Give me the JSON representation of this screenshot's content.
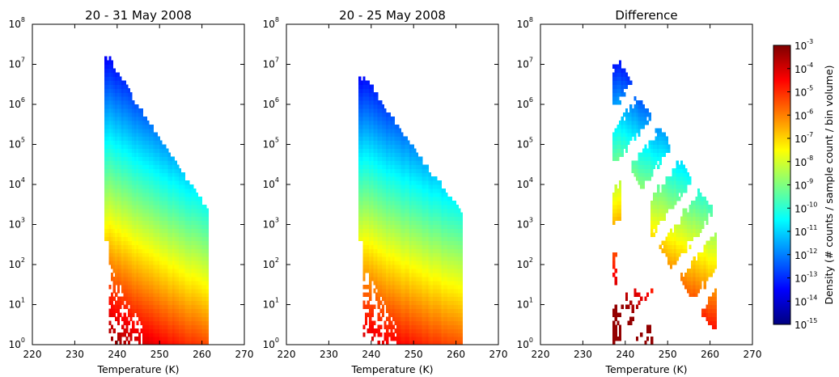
{
  "chart_data": [
    {
      "type": "heatmap",
      "title": "20 - 31 May 2008",
      "xlabel": "Temperature (K)",
      "ylabel": "",
      "x_ticks": [
        "220",
        "230",
        "240",
        "250",
        "260",
        "270"
      ],
      "y_ticks": [
        "10^0",
        "10^1",
        "10^2",
        "10^3",
        "10^4",
        "10^5",
        "10^6",
        "10^7",
        "10^8"
      ],
      "xlim": [
        220,
        270
      ],
      "ylim": [
        1,
        100000000
      ],
      "y_scale": "log",
      "data_range": {
        "temperature_min": 237,
        "temperature_max": 261.5,
        "max_value_at_cold_edge": 20000000,
        "max_value_at_warm_edge": 2000
      }
    },
    {
      "type": "heatmap",
      "title": "20 - 25 May 2008",
      "xlabel": "Temperature (K)",
      "ylabel": "",
      "x_ticks": [
        "220",
        "230",
        "240",
        "250",
        "260",
        "270"
      ],
      "y_ticks": [
        "10^0",
        "10^1",
        "10^2",
        "10^3",
        "10^4",
        "10^5",
        "10^6",
        "10^7",
        "10^8"
      ],
      "xlim": [
        220,
        270
      ],
      "ylim": [
        1,
        100000000
      ],
      "y_scale": "log",
      "data_range": {
        "temperature_min": 237,
        "temperature_max": 261.5,
        "max_value_at_cold_edge": 8000000,
        "max_value_at_warm_edge": 1500
      }
    },
    {
      "type": "heatmap",
      "title": "Difference",
      "xlabel": "Temperature (K)",
      "ylabel": "",
      "x_ticks": [
        "220",
        "230",
        "240",
        "250",
        "260",
        "270"
      ],
      "y_ticks": [
        "10^0",
        "10^1",
        "10^2",
        "10^3",
        "10^4",
        "10^5",
        "10^6",
        "10^7",
        "10^8"
      ],
      "xlim": [
        220,
        270
      ],
      "ylim": [
        1,
        100000000
      ],
      "y_scale": "log",
      "data_range": {
        "temperature_min": 237,
        "temperature_max": 261.5,
        "max_value_at_cold_edge": 20000000,
        "max_value_at_warm_edge": 1500
      }
    }
  ],
  "colorbar": {
    "label": "Density (# counts / sample count / bin volume)",
    "ticks": [
      "10^-3",
      "10^-4",
      "10^-5",
      "10^-6",
      "10^-7",
      "10^-8",
      "10^-9",
      "10^-10",
      "10^-11",
      "10^-12",
      "10^-13",
      "10^-14",
      "10^-15"
    ],
    "colormap": "jet",
    "colors": [
      "#00007f",
      "#0000ff",
      "#007fff",
      "#00ffff",
      "#7fff7f",
      "#ffff00",
      "#ff7f00",
      "#ff0000",
      "#7f0000"
    ]
  }
}
